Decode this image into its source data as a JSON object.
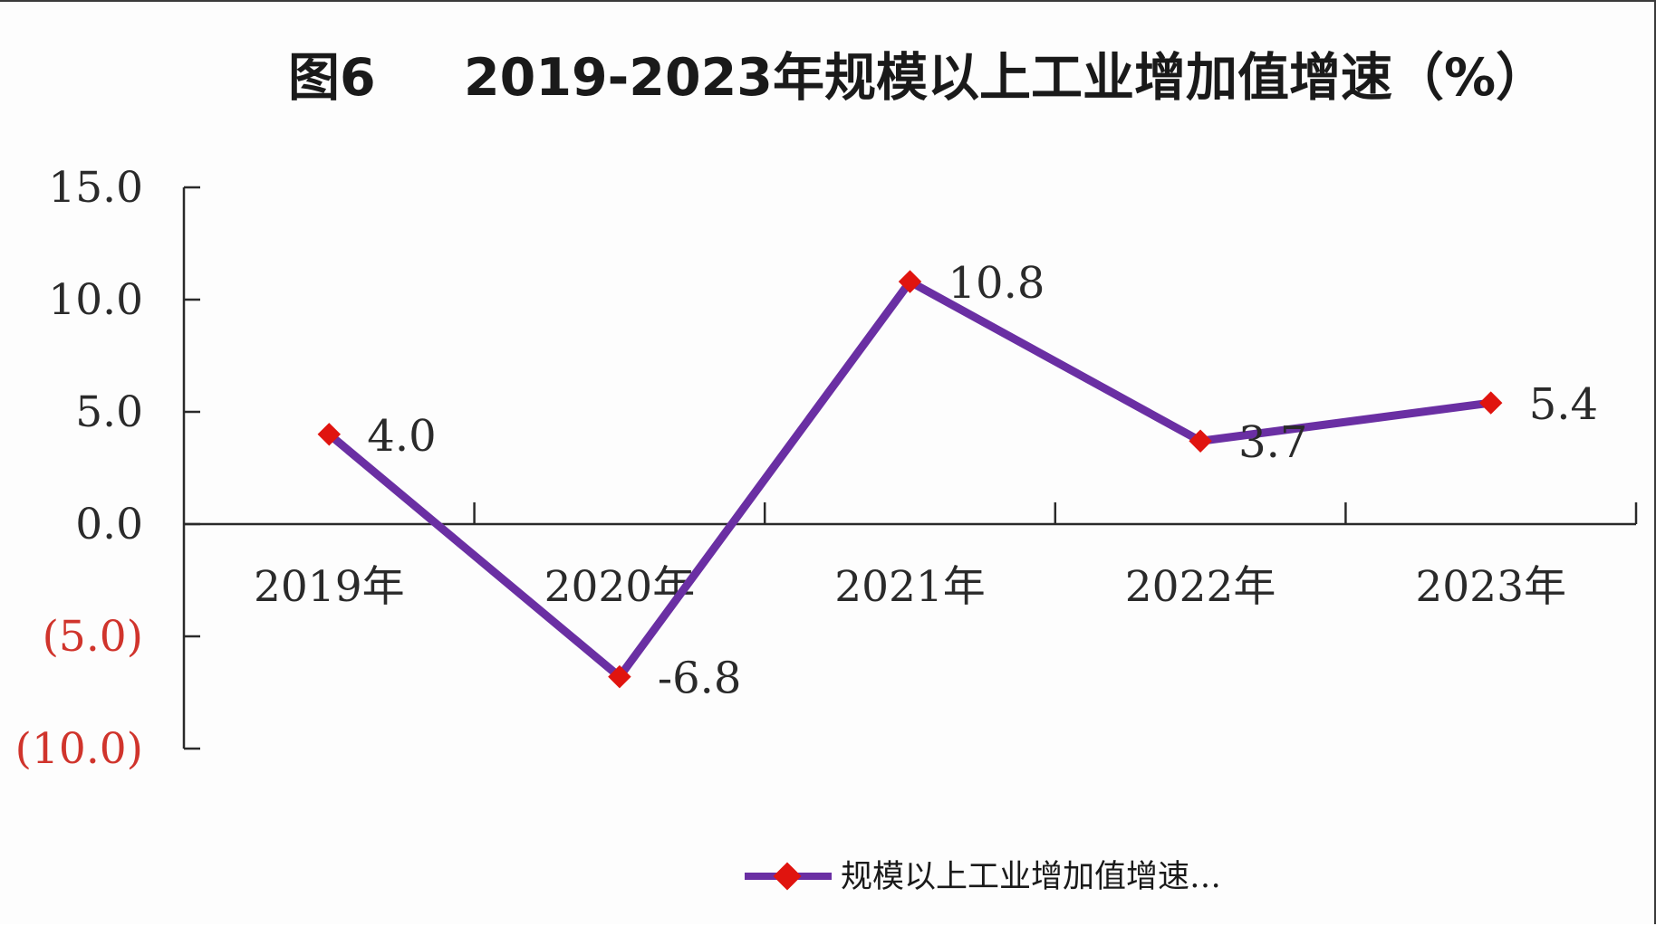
{
  "chart_data": {
    "type": "line",
    "title_prefix": "图6",
    "title": "2019-2023年规模以上工业增加值增速（%）",
    "categories": [
      "2019年",
      "2020年",
      "2021年",
      "2022年",
      "2023年"
    ],
    "series": [
      {
        "name": "规模以上工业增加值增速…",
        "values": [
          4.0,
          -6.8,
          10.8,
          3.7,
          5.4
        ],
        "data_labels": [
          "4.0",
          "-6.8",
          "10.8",
          "3.7",
          "5.4"
        ],
        "line_color": "#6a2fa3",
        "marker_color": "#e0140f",
        "marker": "diamond"
      }
    ],
    "y_ticks": [
      {
        "value": 15,
        "label": "15.0",
        "color": "#2a2a2a"
      },
      {
        "value": 10,
        "label": "10.0",
        "color": "#2a2a2a"
      },
      {
        "value": 5,
        "label": "5.0",
        "color": "#2a2a2a"
      },
      {
        "value": 0,
        "label": "0.0",
        "color": "#2a2a2a"
      },
      {
        "value": -5,
        "label": "(5.0)",
        "color": "#d0342c"
      },
      {
        "value": -10,
        "label": "(10.0)",
        "color": "#d0342c"
      }
    ],
    "ylim": [
      -10,
      15
    ],
    "grid": false,
    "legend_position": "bottom"
  }
}
